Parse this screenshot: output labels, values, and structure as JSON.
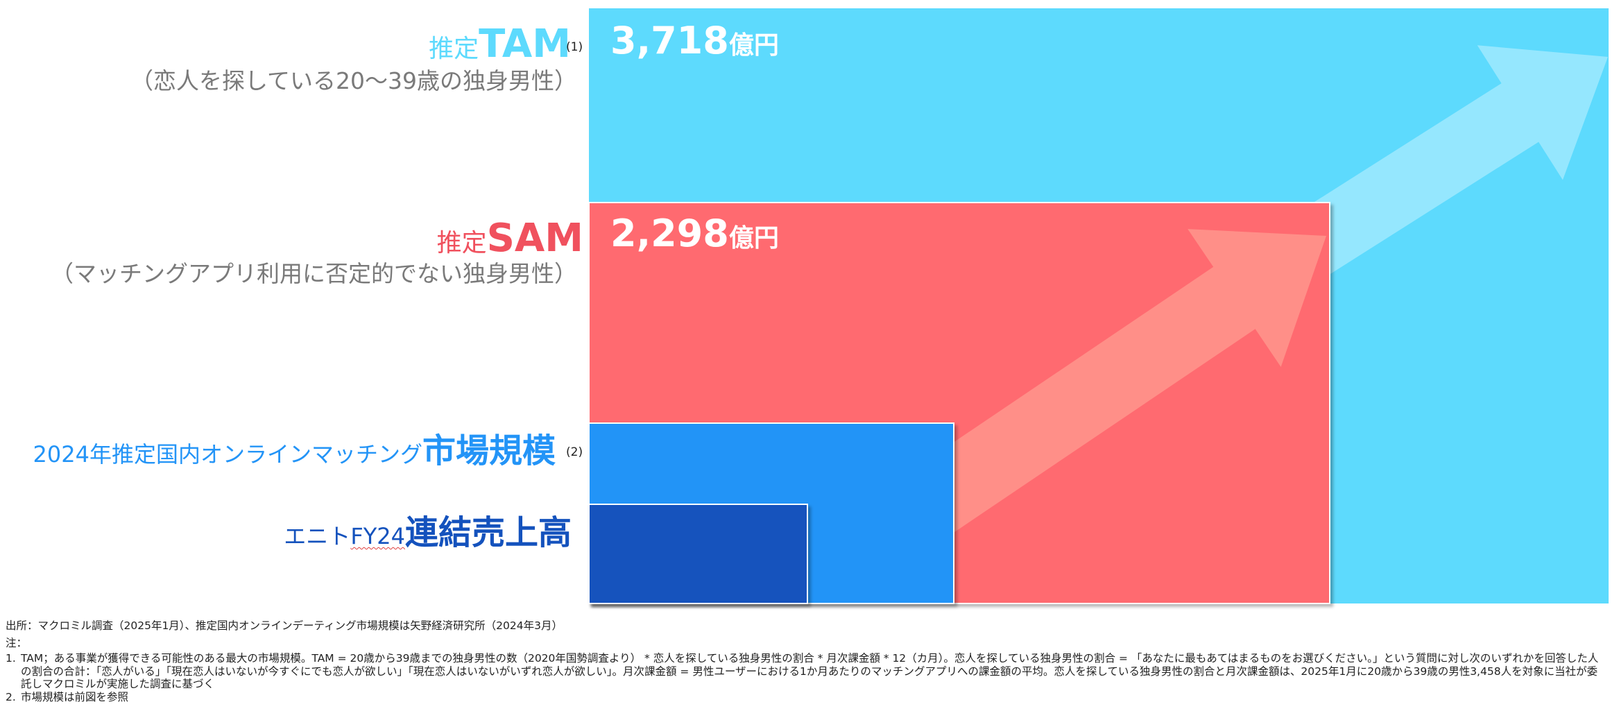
{
  "chart_data": {
    "type": "nested-area",
    "unit": "億円",
    "segments": [
      {
        "key": "tam",
        "prefix": "推定",
        "emphasis": "TAM",
        "note_ref": "(1)",
        "description": "（恋人を探している20～39歳の独身男性）",
        "value_text": "3,718",
        "unit": "億円",
        "value": 3718,
        "color": "#5ddafd",
        "label_color": "#5ddafd"
      },
      {
        "key": "sam",
        "prefix": "推定",
        "emphasis": "SAM",
        "description": "（マッチングアプリ利用に否定的でない独身男性）",
        "value_text": "2,298",
        "unit": "億円",
        "value": 2298,
        "color": "#ff6a70",
        "label_color": "#f0515e"
      },
      {
        "key": "market",
        "prefix": "2024年推定国内オンラインマッチング",
        "emphasis": "市場規模",
        "note_ref": "(2)",
        "color": "#2394f7",
        "label_color": "#2394f7"
      },
      {
        "key": "sales",
        "prefix_part1": "エニト",
        "prefix_part2": "FY24",
        "emphasis": "連結売上高",
        "color": "#1452bd",
        "label_color": "#1452bd"
      }
    ]
  },
  "footer": {
    "source": "出所：マクロミル調査（2025年1月）、推定国内オンラインデーティング市場規模は矢野経済研究所（2024年3月）",
    "notes_title": "注：",
    "notes": [
      {
        "num": "1.",
        "text": "TAM；ある事業が獲得できる可能性のある最大の市場規模。TAM = 20歳から39歳までの独身男性の数（2020年国勢調査より） * 恋人を探している独身男性の割合 * 月次課金額 * 12（カ月）。恋人を探している独身男性の割合 = 「あなたに最もあてはまるものをお選びください。」という質問に対し次のいずれかを回答した人の割合の合計：「恋人がいる」「現在恋人はいないが今すぐにでも恋人が欲しい」「現在恋人はいないがいずれ恋人が欲しい」。月次課金額 = 男性ユーザーにおける1か月あたりのマッチングアプリへの課金額の平均。恋人を探している独身男性の割合と月次課金額は、2025年1月に20歳から39歳の男性3,458人を対象に当社が委託しマクロミルが実施した調査に基づく"
      },
      {
        "num": "2.",
        "text": "市場規模は前図を参照"
      }
    ]
  }
}
